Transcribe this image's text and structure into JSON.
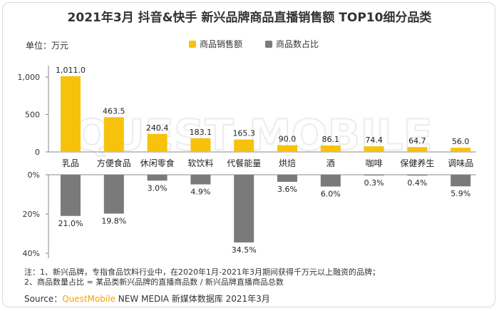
{
  "title": "2021年3月 抖音&快手 新兴品牌商品直播销售额 TOP10细分品类",
  "unit_label": "单位：万元",
  "colors": {
    "sales": "#f7c20c",
    "share": "#7a7a7a",
    "axis": "#888888"
  },
  "chart_data": {
    "type": "bar",
    "categories": [
      "乳品",
      "方便食品",
      "休闲零食",
      "软饮料",
      "代餐能量",
      "烘焙",
      "酒",
      "咖啡",
      "保健养生",
      "调味品"
    ],
    "series": [
      {
        "name": "商品销售额",
        "values": [
          1011.0,
          463.5,
          240.4,
          183.1,
          165.3,
          90.0,
          86.1,
          74.4,
          64.7,
          56.0
        ],
        "labels": [
          "1,011.0",
          "463.5",
          "240.4",
          "183.1",
          "165.3",
          "90.0",
          "86.1",
          "74.4",
          "64.7",
          "56.0"
        ],
        "ylim": [
          0,
          1000
        ],
        "yticks": [
          "0",
          "500",
          "1,000"
        ]
      },
      {
        "name": "商品数占比",
        "values": [
          21.0,
          19.8,
          3.0,
          4.9,
          34.5,
          3.6,
          6.0,
          0.3,
          0.4,
          5.9
        ],
        "labels": [
          "21.0%",
          "19.8%",
          "3.0%",
          "4.9%",
          "34.5%",
          "3.6%",
          "6.0%",
          "0.3%",
          "0.4%",
          "5.9%"
        ],
        "ylim": [
          0,
          40
        ],
        "yticks": [
          "0%",
          "20%",
          "40%"
        ]
      }
    ]
  },
  "notes": [
    "注：1、新兴品牌，专指食品饮料行业中，在2020年1月-2021年3月期间获得千万元以上融资的品牌；",
    "2、商品数量占比 = 某品类新兴品牌的直播商品数 / 新兴品牌直播商品总数"
  ],
  "source": {
    "prefix": "Source：",
    "brand": "QuestMobile",
    "suffix": " NEW MEDIA 新媒体数据库 2021年3月"
  },
  "watermark_text": "QUEST MOBILE"
}
